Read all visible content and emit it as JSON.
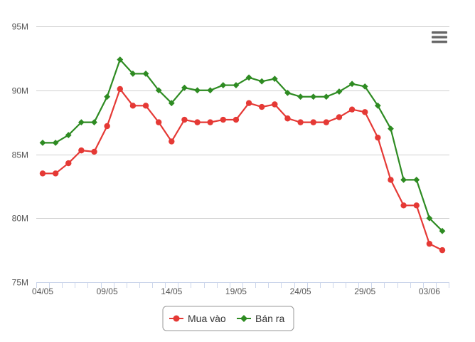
{
  "colors": {
    "buy": "#e53935",
    "sell": "#2e8b22",
    "grid": "#d0d0d0",
    "axis_line": "#ccd6eb",
    "legend_border": "#999999",
    "menu_icon": "#666666"
  },
  "menu": {
    "icon": "hamburger-menu-icon"
  },
  "chart_data": {
    "type": "line",
    "title": "",
    "xlabel": "",
    "ylabel": "",
    "ylim": [
      75,
      95
    ],
    "y_ticks": [
      {
        "value": 75,
        "label": "75M"
      },
      {
        "value": 80,
        "label": "80M"
      },
      {
        "value": 85,
        "label": "85M"
      },
      {
        "value": 90,
        "label": "90M"
      },
      {
        "value": 95,
        "label": "95M"
      }
    ],
    "x_tick_labels": [
      "04/05",
      "09/05",
      "14/05",
      "19/05",
      "24/05",
      "29/05",
      "03/06"
    ],
    "x": [
      "04/05",
      "05/05",
      "06/05",
      "07/05",
      "08/05",
      "09/05",
      "10/05",
      "11/05",
      "12/05",
      "13/05",
      "14/05",
      "15/05",
      "16/05",
      "17/05",
      "18/05",
      "19/05",
      "20/05",
      "21/05",
      "22/05",
      "23/05",
      "24/05",
      "25/05",
      "26/05",
      "27/05",
      "28/05",
      "29/05",
      "30/05",
      "31/05",
      "01/06",
      "02/06",
      "03/06",
      "04/06"
    ],
    "grid": true,
    "legend_position": "bottom-center",
    "series": [
      {
        "name": "Mua vào",
        "marker": "circle",
        "values": [
          83.5,
          83.5,
          84.3,
          85.3,
          85.2,
          87.2,
          90.1,
          88.8,
          88.8,
          87.5,
          86.0,
          87.7,
          87.5,
          87.5,
          87.7,
          87.7,
          89.0,
          88.7,
          88.9,
          87.8,
          87.5,
          87.5,
          87.5,
          87.9,
          88.5,
          88.3,
          86.3,
          83.0,
          81.0,
          81.0,
          78.0,
          77.5
        ]
      },
      {
        "name": "Bán ra",
        "marker": "diamond",
        "values": [
          85.9,
          85.9,
          86.5,
          87.5,
          87.5,
          89.5,
          92.4,
          91.3,
          91.3,
          90.0,
          89.0,
          90.2,
          90.0,
          90.0,
          90.4,
          90.4,
          91.0,
          90.7,
          90.9,
          89.8,
          89.5,
          89.5,
          89.5,
          89.9,
          90.5,
          90.3,
          88.8,
          87.0,
          83.0,
          83.0,
          80.0,
          79.0
        ]
      }
    ]
  }
}
